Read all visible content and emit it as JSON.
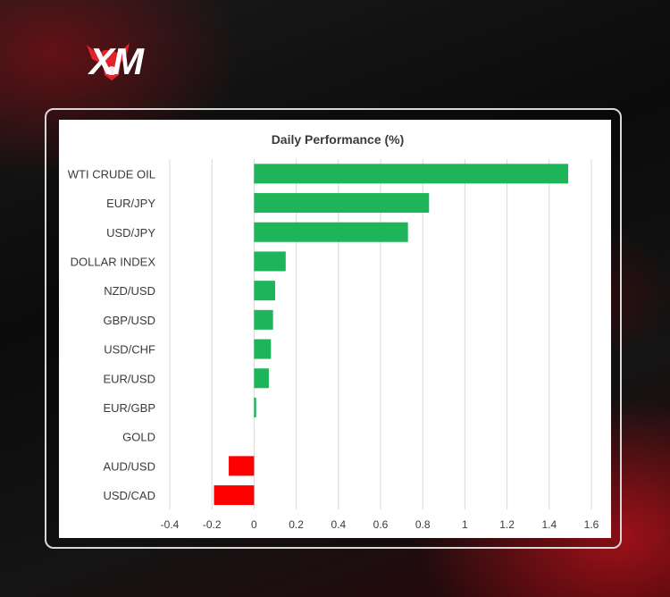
{
  "brand": {
    "name": "XM",
    "logo_icon": "bull-head-icon",
    "accent": "#e3232c"
  },
  "chart_data": {
    "type": "bar",
    "orientation": "horizontal",
    "title": "Daily Performance (%)",
    "xlabel": "",
    "ylabel": "",
    "categories": [
      "WTI CRUDE OIL",
      "EUR/JPY",
      "USD/JPY",
      "DOLLAR INDEX",
      "NZD/USD",
      "GBP/USD",
      "USD/CHF",
      "EUR/USD",
      "EUR/GBP",
      "GOLD",
      "AUD/USD",
      "USD/CAD"
    ],
    "values": [
      1.49,
      0.83,
      0.73,
      0.15,
      0.1,
      0.09,
      0.08,
      0.07,
      0.01,
      0.0,
      -0.12,
      -0.19
    ],
    "xlim": [
      -0.4,
      1.6
    ],
    "xticks": [
      -0.4,
      -0.2,
      0,
      0.2,
      0.4,
      0.6,
      0.8,
      1,
      1.2,
      1.4,
      1.6
    ],
    "xtick_labels": [
      "-0.4",
      "-0.2",
      "0",
      "0.2",
      "0.4",
      "0.6",
      "0.8",
      "1",
      "1.2",
      "1.4",
      "1.6"
    ],
    "grid": "vertical",
    "colors": {
      "positive": "#1db45a",
      "negative": "#ff0000",
      "gridline": "#d9d9d9",
      "text": "#3a3a3a"
    }
  }
}
